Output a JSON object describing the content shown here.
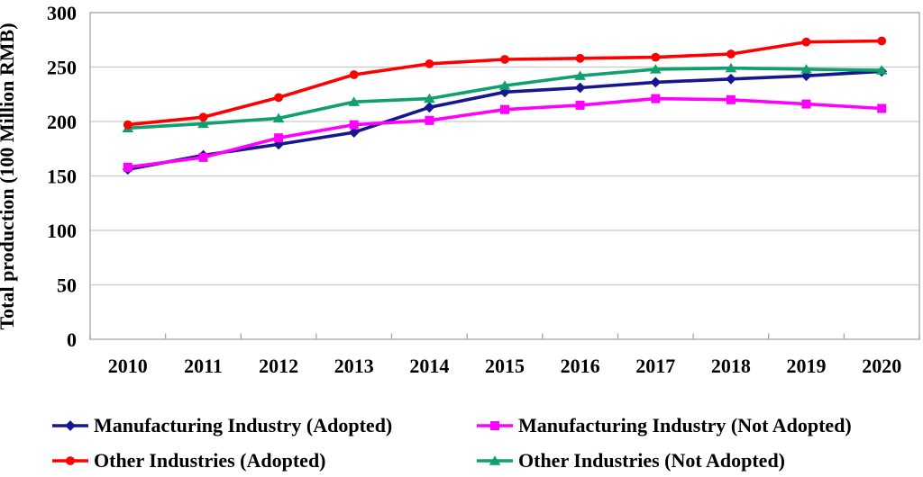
{
  "figure": {
    "background": "#FFFFFF",
    "text_color": "#000000",
    "grid_color": "#C9C9C9",
    "border_color": "#A6A6A6"
  },
  "chart_data": {
    "type": "line",
    "title": "",
    "xlabel": "",
    "ylabel": "Total production (100 Million RMB)",
    "x_categories": [
      "2010",
      "2011",
      "2012",
      "2013",
      "2014",
      "2015",
      "2016",
      "2017",
      "2018",
      "2019",
      "2020"
    ],
    "yticks": [
      0,
      50,
      100,
      150,
      200,
      250,
      300
    ],
    "ylim": [
      0,
      300
    ],
    "grid": "horizontal",
    "legend_position": "bottom-two-columns",
    "series": [
      {
        "name": "Manufacturing Industry (Adopted)",
        "marker": "diamond",
        "color": "#16168F",
        "values": [
          156,
          169,
          179,
          190,
          213,
          227,
          231,
          236,
          239,
          242,
          246
        ]
      },
      {
        "name": "Manufacturing Industry (Not Adopted)",
        "marker": "square",
        "color": "#FF00FF",
        "values": [
          158,
          167,
          185,
          197,
          201,
          211,
          215,
          221,
          220,
          216,
          212
        ]
      },
      {
        "name": "Other Industries (Adopted)",
        "marker": "circle",
        "color": "#FF0000",
        "values": [
          197,
          204,
          222,
          243,
          253,
          257,
          258,
          259,
          262,
          273,
          274
        ]
      },
      {
        "name": "Other Industries (Not Adopted)",
        "marker": "triangle",
        "color": "#0FA06E",
        "values": [
          194,
          198,
          203,
          218,
          221,
          233,
          242,
          248,
          249,
          248,
          247
        ]
      }
    ]
  }
}
